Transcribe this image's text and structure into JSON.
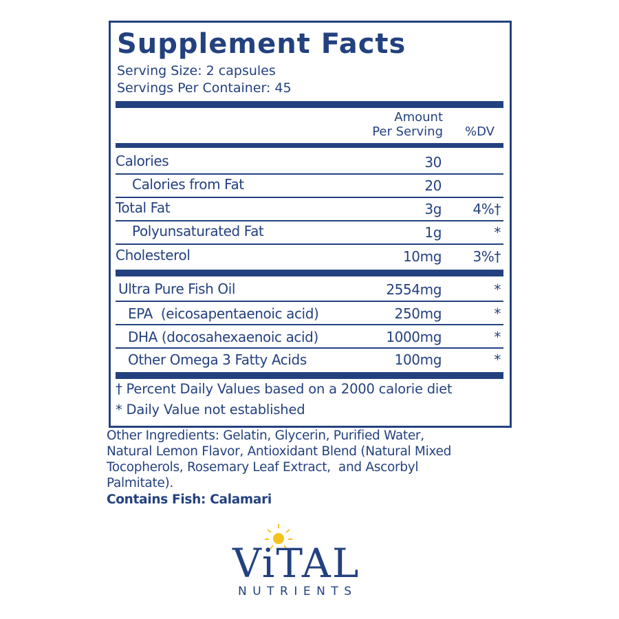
{
  "header": {
    "title": "Supplement Facts",
    "serving_size": "Serving Size: 2 capsules",
    "servings_per_container": "Servings Per Container: 45"
  },
  "table": {
    "amount_header": [
      "Amount",
      "Per Serving"
    ],
    "dv_header": "%DV",
    "nutrients": [
      {
        "name": "Calories",
        "amount": "30"
      },
      {
        "name": "Calories from Fat",
        "amount": "20"
      },
      {
        "name": "Total Fat",
        "amount": "3g",
        "dv": "4%†"
      },
      {
        "name": "Polyunsaturated Fat",
        "amount": "1g",
        "dv": "*"
      },
      {
        "name": "Cholesterol",
        "amount": "10mg",
        "dv": "3%†"
      }
    ],
    "ingredients": [
      {
        "name": "Ultra Pure Fish Oil",
        "amount": "2554mg",
        "dv": "*"
      },
      {
        "name": "EPA  (eicosapentaenoic acid)",
        "amount": "250mg",
        "dv": "*"
      },
      {
        "name": "DHA (docosahexaenoic acid)",
        "amount": "1000mg",
        "dv": "*"
      },
      {
        "name": "Other Omega 3 Fatty Acids",
        "amount": "100mg",
        "dv": "*"
      }
    ]
  },
  "footnotes": [
    "† Percent Daily Values based on a 2000 calorie diet",
    "* Daily Value not established"
  ],
  "other_ingredients": [
    "Other Ingredients: Gelatin, Glycerin, Purified Water,",
    "Natural Lemon Flavor, Antioxidant Blend (Natural Mixed",
    "Tocopherols, Rosemary Leaf Extract,  and Ascorbyl",
    "Palmitate)."
  ],
  "contains": "Contains Fish: Calamari",
  "logo": {
    "brand": "ViTAL",
    "tagline": "NUTRIENTS"
  }
}
